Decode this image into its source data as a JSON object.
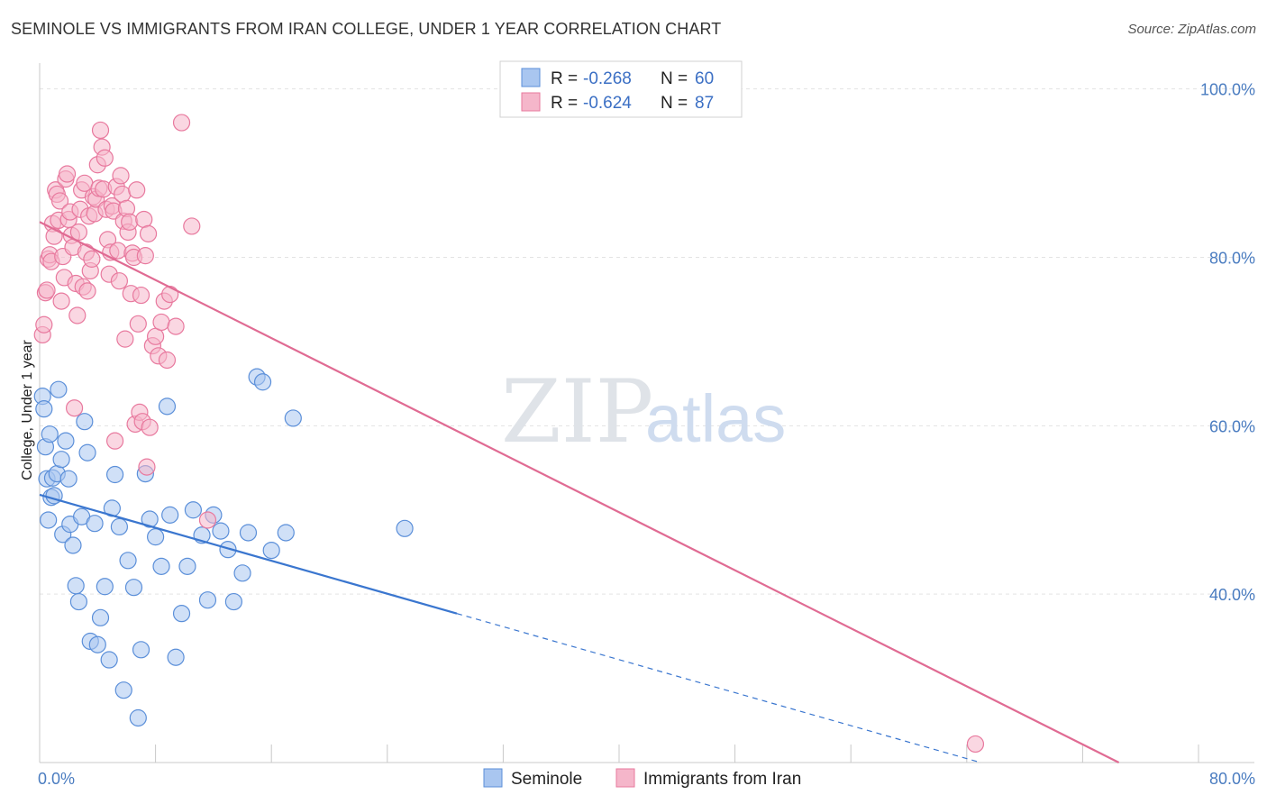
{
  "title": "SEMINOLE VS IMMIGRANTS FROM IRAN COLLEGE, UNDER 1 YEAR CORRELATION CHART",
  "source": "Source: ZipAtlas.com",
  "watermark": {
    "zip": "ZIP",
    "atlas": "atlas"
  },
  "legend_stats": [
    {
      "r_label": "R =",
      "r_value": "-0.268",
      "n_label": "N =",
      "n_value": "60"
    },
    {
      "r_label": "R =",
      "r_value": "-0.624",
      "n_label": "N =",
      "n_value": "87"
    }
  ],
  "chart_data": {
    "type": "scatter",
    "title": "SEMINOLE VS IMMIGRANTS FROM IRAN COLLEGE, UNDER 1 YEAR CORRELATION CHART",
    "xlabel": "",
    "ylabel": "College, Under 1 year",
    "xlim": [
      0,
      80
    ],
    "ylim": [
      20,
      102
    ],
    "x_tick_labels": [
      "0.0%",
      "80.0%"
    ],
    "y_ticks": [
      100,
      80,
      60,
      40
    ],
    "y_tick_labels": [
      "100.0%",
      "80.0%",
      "60.0%",
      "40.0%"
    ],
    "grid": true,
    "legend_position": "top-center",
    "colors": {
      "seminole": "#5b8fd9",
      "iran": "#e8799e",
      "seminole_fill": "#a9c6f0",
      "iran_fill": "#f5b6ca"
    },
    "series": [
      {
        "name": "Seminole",
        "color": "#5b8fd9",
        "r": -0.268,
        "n": 60,
        "trend": {
          "x0": 0,
          "y0": 51.8,
          "x1": 28.8,
          "y1": 37.7,
          "dashed_to_x": 65
        },
        "x": [
          0.2,
          0.3,
          0.4,
          0.5,
          0.6,
          0.7,
          0.8,
          0.9,
          1.0,
          1.2,
          1.3,
          1.5,
          1.6,
          1.8,
          2.0,
          2.1,
          2.3,
          2.5,
          2.7,
          2.9,
          3.1,
          3.3,
          3.5,
          3.8,
          4.0,
          4.2,
          4.5,
          4.8,
          5.0,
          5.2,
          5.5,
          5.8,
          6.1,
          6.5,
          6.8,
          7.0,
          7.3,
          7.6,
          8.0,
          8.4,
          8.8,
          9.0,
          9.4,
          9.8,
          10.2,
          10.6,
          11.2,
          11.6,
          12.0,
          12.5,
          13.0,
          13.4,
          14.0,
          14.4,
          15.0,
          15.4,
          16.0,
          17.0,
          17.5,
          25.2
        ],
        "y": [
          63.5,
          62.0,
          57.5,
          53.7,
          48.8,
          59.0,
          51.5,
          53.8,
          51.7,
          54.3,
          64.3,
          56.0,
          47.1,
          58.2,
          53.7,
          48.3,
          45.8,
          41.0,
          39.1,
          49.2,
          60.5,
          56.8,
          34.4,
          48.4,
          34.0,
          37.2,
          40.9,
          32.2,
          50.2,
          54.2,
          48.0,
          28.6,
          44.0,
          40.8,
          25.3,
          33.4,
          54.3,
          48.9,
          46.8,
          43.3,
          62.3,
          49.4,
          32.5,
          37.7,
          43.3,
          50.0,
          47.0,
          39.3,
          49.4,
          47.5,
          45.3,
          39.1,
          42.5,
          47.3,
          65.8,
          65.2,
          45.2,
          47.3,
          60.9,
          47.8
        ]
      },
      {
        "name": "Immigrants from Iran",
        "color": "#e8799e",
        "r": -0.624,
        "n": 87,
        "trend": {
          "x0": 0,
          "y0": 84.2,
          "x1": 74.5,
          "y1": 20.0
        },
        "x": [
          0.2,
          0.3,
          0.4,
          0.5,
          0.6,
          0.7,
          0.8,
          0.9,
          1.0,
          1.1,
          1.2,
          1.3,
          1.4,
          1.5,
          1.6,
          1.7,
          1.8,
          1.9,
          2.0,
          2.1,
          2.2,
          2.3,
          2.4,
          2.5,
          2.6,
          2.7,
          2.8,
          2.9,
          3.0,
          3.1,
          3.2,
          3.3,
          3.4,
          3.5,
          3.6,
          3.7,
          3.8,
          3.9,
          4.0,
          4.1,
          4.2,
          4.3,
          4.4,
          4.5,
          4.6,
          4.7,
          4.8,
          4.9,
          5.0,
          5.1,
          5.2,
          5.3,
          5.4,
          5.5,
          5.6,
          5.7,
          5.8,
          5.9,
          6.0,
          6.1,
          6.2,
          6.3,
          6.4,
          6.5,
          6.6,
          6.7,
          6.8,
          6.9,
          7.0,
          7.1,
          7.2,
          7.3,
          7.4,
          7.5,
          7.6,
          7.8,
          8.0,
          8.2,
          8.4,
          8.6,
          8.8,
          9.0,
          9.4,
          9.8,
          10.5,
          11.6,
          64.6
        ],
        "y": [
          70.8,
          72.0,
          75.8,
          76.1,
          79.8,
          80.3,
          79.5,
          84.0,
          82.5,
          88.0,
          87.5,
          84.4,
          86.7,
          74.8,
          80.1,
          77.6,
          89.3,
          89.9,
          84.5,
          85.4,
          82.6,
          81.2,
          62.1,
          76.9,
          73.1,
          83.0,
          85.7,
          88.0,
          76.5,
          88.8,
          80.6,
          76.0,
          84.9,
          78.4,
          79.8,
          87.2,
          85.2,
          86.9,
          91.0,
          88.2,
          95.1,
          93.1,
          88.1,
          91.8,
          85.7,
          82.1,
          78.0,
          80.6,
          86.1,
          85.5,
          58.2,
          88.4,
          80.8,
          77.2,
          89.7,
          87.5,
          84.3,
          70.3,
          85.8,
          83.0,
          84.2,
          75.7,
          80.5,
          80.0,
          60.2,
          88.0,
          72.1,
          61.6,
          75.5,
          60.5,
          84.5,
          80.2,
          55.1,
          82.8,
          59.8,
          69.5,
          70.6,
          68.3,
          72.3,
          74.8,
          67.8,
          75.6,
          71.8,
          96.0,
          83.7,
          48.8,
          22.2
        ]
      }
    ]
  }
}
